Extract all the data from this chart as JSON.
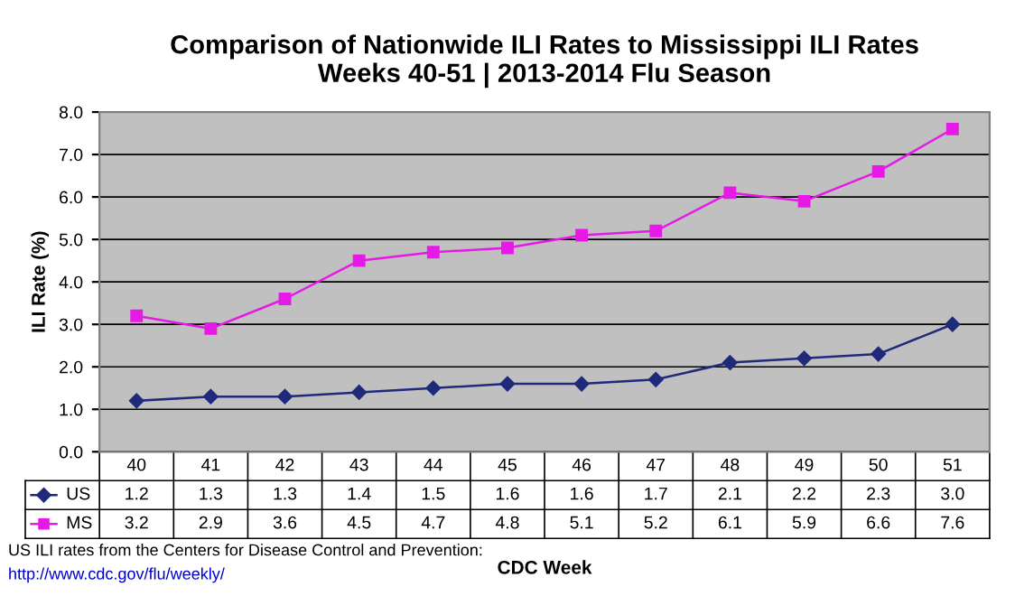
{
  "chart_data": {
    "type": "line",
    "title": "Comparison of Nationwide ILI Rates to Mississippi ILI Rates\nWeeks 40-51 | 2013-2014 Flu Season",
    "xlabel": "CDC Week",
    "ylabel": "ILI Rate (%)",
    "categories": [
      "40",
      "41",
      "42",
      "43",
      "44",
      "45",
      "46",
      "47",
      "48",
      "49",
      "50",
      "51"
    ],
    "series": [
      {
        "name": "US",
        "color": "#1f2a7a",
        "marker": "diamond",
        "values": [
          1.2,
          1.3,
          1.3,
          1.4,
          1.5,
          1.6,
          1.6,
          1.7,
          2.1,
          2.2,
          2.3,
          3.0
        ],
        "value_labels": [
          "1.2",
          "1.3",
          "1.3",
          "1.4",
          "1.5",
          "1.6",
          "1.6",
          "1.7",
          "2.1",
          "2.2",
          "2.3",
          "3.0"
        ]
      },
      {
        "name": "MS",
        "color": "#e619e6",
        "marker": "square",
        "values": [
          3.2,
          2.9,
          3.6,
          4.5,
          4.7,
          4.8,
          5.1,
          5.2,
          6.1,
          5.9,
          6.6,
          7.6
        ],
        "value_labels": [
          "3.2",
          "2.9",
          "3.6",
          "4.5",
          "4.7",
          "4.8",
          "5.1",
          "5.2",
          "6.1",
          "5.9",
          "6.6",
          "7.6"
        ]
      }
    ],
    "ylim": [
      0,
      8
    ],
    "yticks": [
      "0.0",
      "1.0",
      "2.0",
      "3.0",
      "4.0",
      "5.0",
      "6.0",
      "7.0",
      "8.0"
    ],
    "grid": "y",
    "legend": "bottom",
    "line_style": "solid",
    "annotations": [
      "US ILI rates from the Centers for Disease Control and Prevention:",
      "http://www.cdc.gov/flu/weekly/"
    ]
  }
}
